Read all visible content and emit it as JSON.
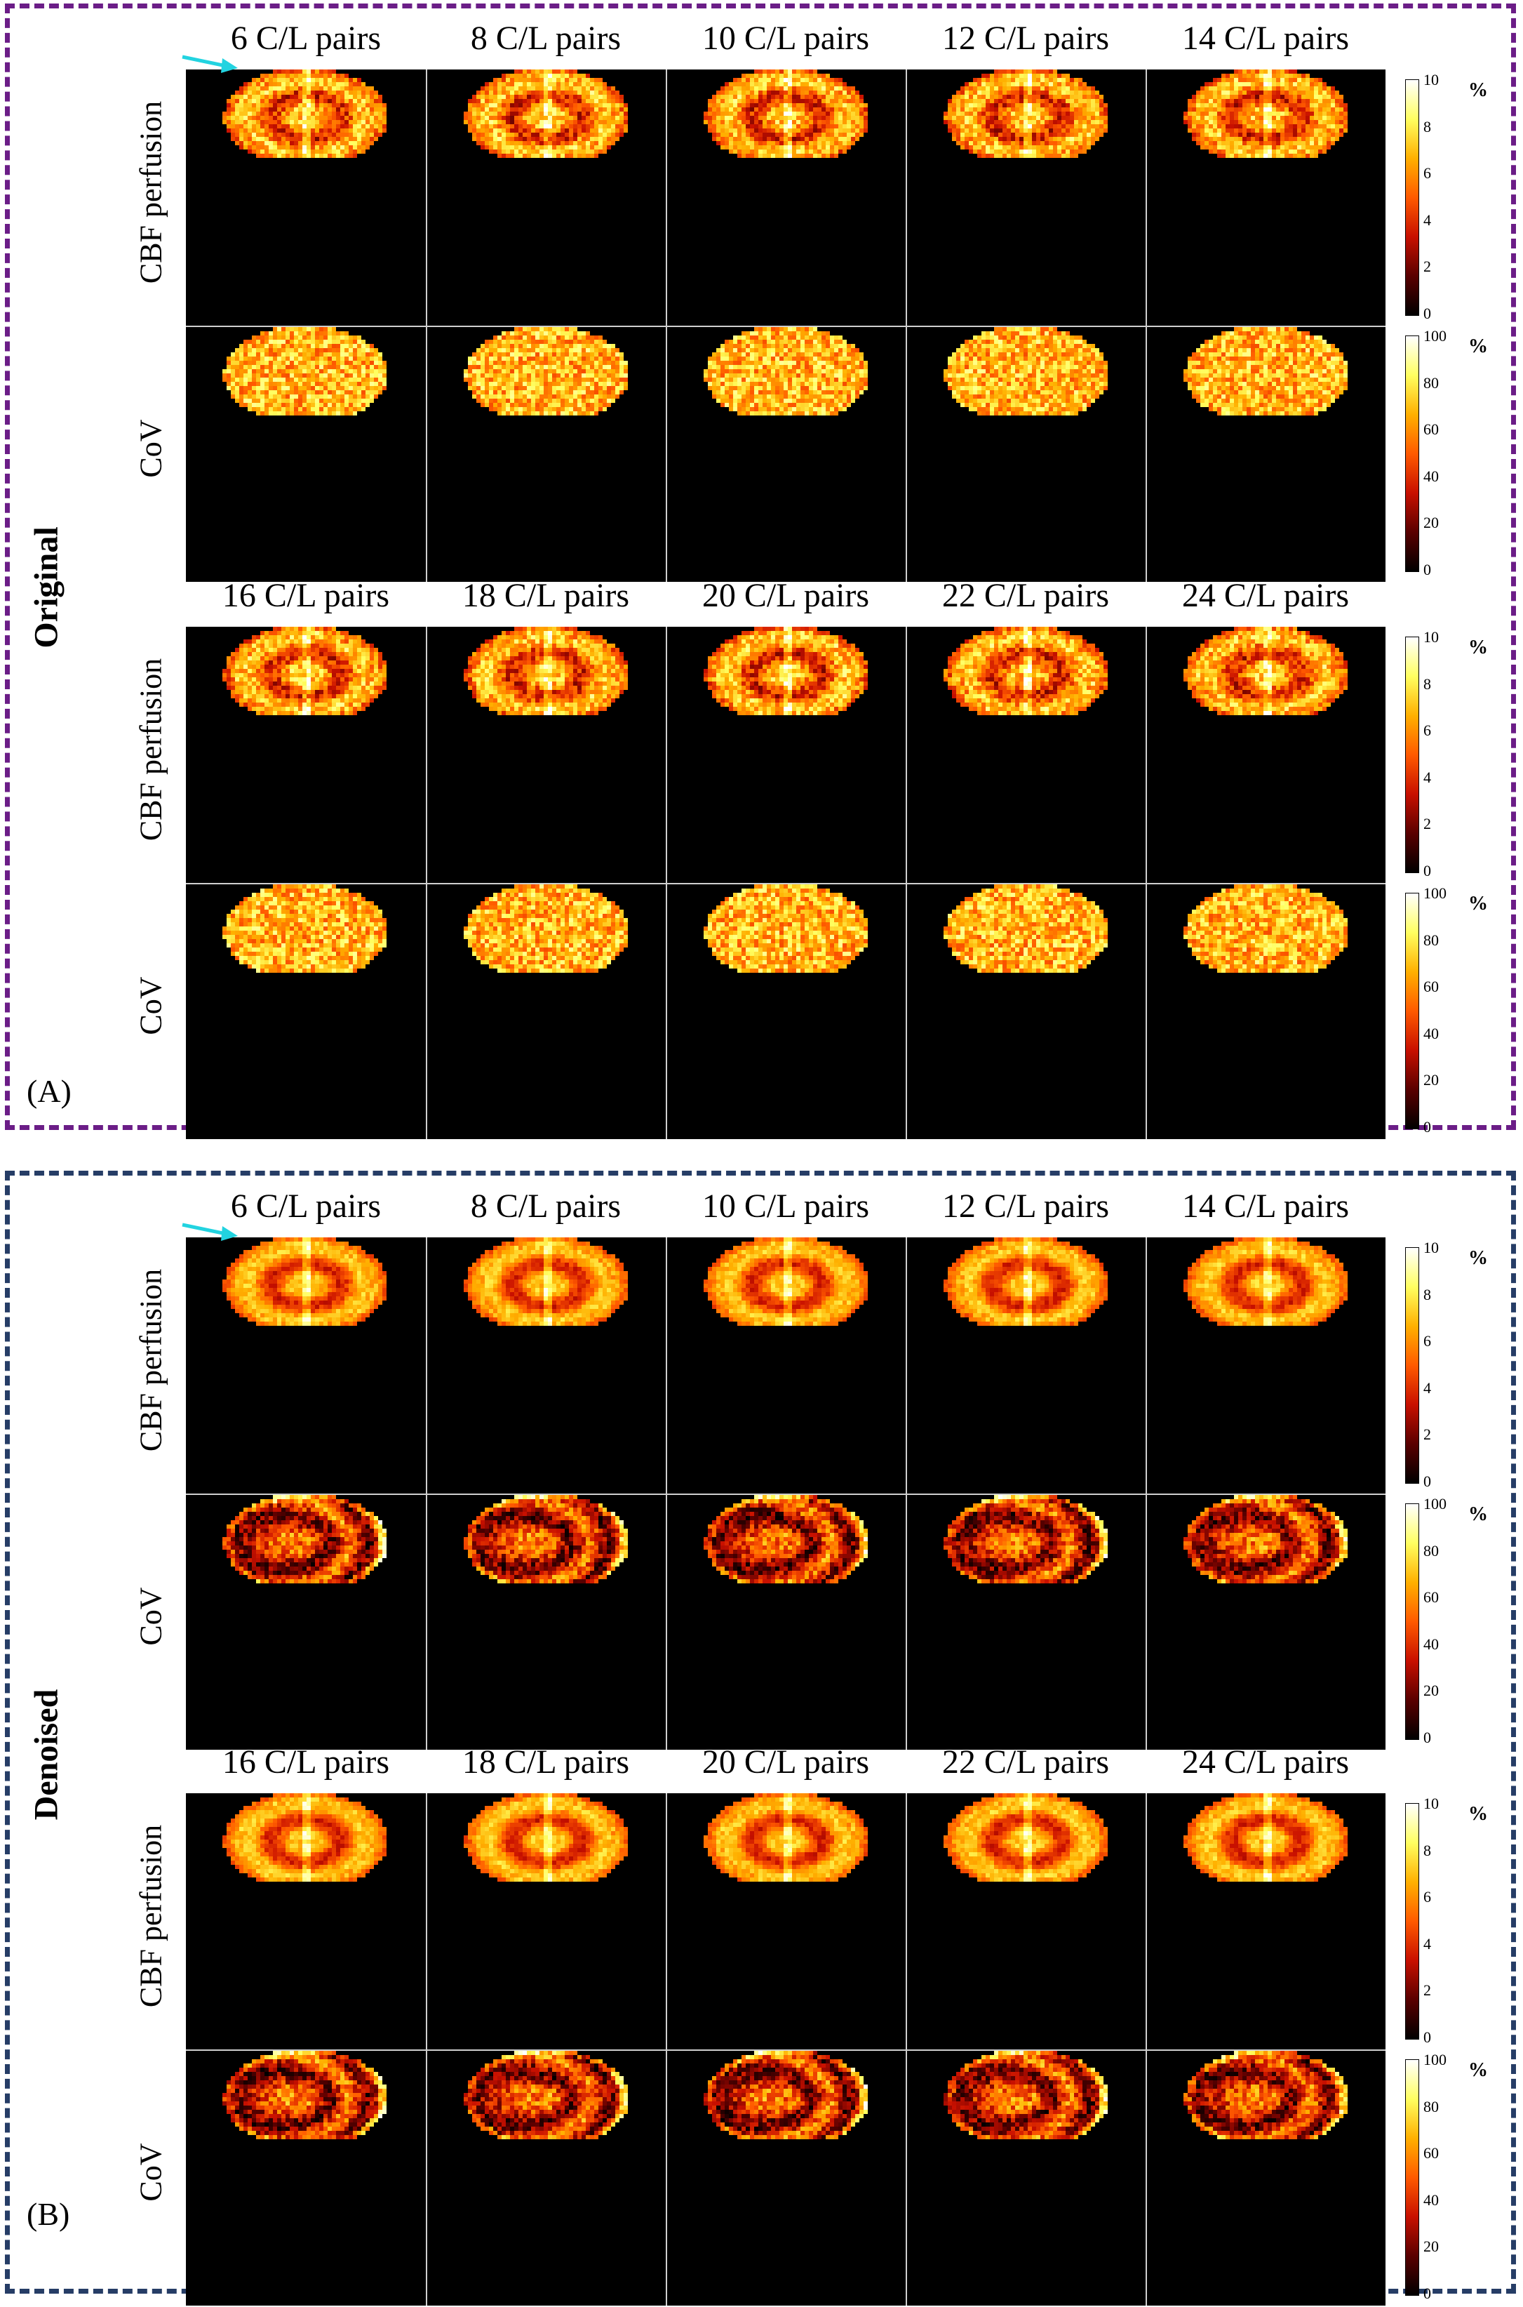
{
  "figure": {
    "panels": [
      {
        "id": "A",
        "letter": "(A)",
        "side_title": "Original",
        "blocks": [
          {
            "columns": [
              "6 C/L pairs",
              "8 C/L pairs",
              "10 C/L pairs",
              "12 C/L pairs",
              "14 C/L pairs"
            ],
            "rows": [
              {
                "label": "CBF perfusion",
                "map": "cbf",
                "colorbar": {
                  "ticks": [
                    "10",
                    "8",
                    "6",
                    "4",
                    "2",
                    "0"
                  ],
                  "unit": "%"
                },
                "arrow_on_first": true
              },
              {
                "label": "CoV",
                "map": "cov",
                "colorbar": {
                  "ticks": [
                    "100",
                    "80",
                    "60",
                    "40",
                    "20",
                    "0"
                  ],
                  "unit": "%"
                },
                "arrow_on_first": false
              }
            ]
          },
          {
            "columns": [
              "16 C/L pairs",
              "18 C/L pairs",
              "20 C/L pairs",
              "22 C/L pairs",
              "24 C/L pairs"
            ],
            "rows": [
              {
                "label": "CBF perfusion",
                "map": "cbf",
                "colorbar": {
                  "ticks": [
                    "10",
                    "8",
                    "6",
                    "4",
                    "2",
                    "0"
                  ],
                  "unit": "%"
                },
                "arrow_on_first": false
              },
              {
                "label": "CoV",
                "map": "cov",
                "colorbar": {
                  "ticks": [
                    "100",
                    "80",
                    "60",
                    "40",
                    "20",
                    "0"
                  ],
                  "unit": "%"
                },
                "arrow_on_first": false
              }
            ]
          }
        ]
      },
      {
        "id": "B",
        "letter": "(B)",
        "side_title": "Denoised",
        "blocks": [
          {
            "columns": [
              "6 C/L pairs",
              "8 C/L pairs",
              "10 C/L pairs",
              "12 C/L pairs",
              "14 C/L pairs"
            ],
            "rows": [
              {
                "label": "CBF perfusion",
                "map": "cbf",
                "colorbar": {
                  "ticks": [
                    "10",
                    "8",
                    "6",
                    "4",
                    "2",
                    "0"
                  ],
                  "unit": "%"
                },
                "arrow_on_first": true
              },
              {
                "label": "CoV",
                "map": "cov",
                "colorbar": {
                  "ticks": [
                    "100",
                    "80",
                    "60",
                    "40",
                    "20",
                    "0"
                  ],
                  "unit": "%"
                },
                "arrow_on_first": false
              }
            ]
          },
          {
            "columns": [
              "16 C/L pairs",
              "18 C/L pairs",
              "20 C/L pairs",
              "22 C/L pairs",
              "24 C/L pairs"
            ],
            "rows": [
              {
                "label": "CBF perfusion",
                "map": "cbf",
                "colorbar": {
                  "ticks": [
                    "10",
                    "8",
                    "6",
                    "4",
                    "2",
                    "0"
                  ],
                  "unit": "%"
                },
                "arrow_on_first": false
              },
              {
                "label": "CoV",
                "map": "cov",
                "colorbar": {
                  "ticks": [
                    "100",
                    "80",
                    "60",
                    "40",
                    "20",
                    "0"
                  ],
                  "unit": "%"
                },
                "arrow_on_first": false
              }
            ]
          }
        ]
      }
    ],
    "colors": {
      "panel_a_border": "#6b1d87",
      "panel_b_border": "#263d66",
      "arrow": "#22d3e0",
      "colormap": [
        "#000000",
        "#5a0000",
        "#c81000",
        "#ff5a00",
        "#ffb000",
        "#ffff60",
        "#ffffff"
      ]
    }
  }
}
